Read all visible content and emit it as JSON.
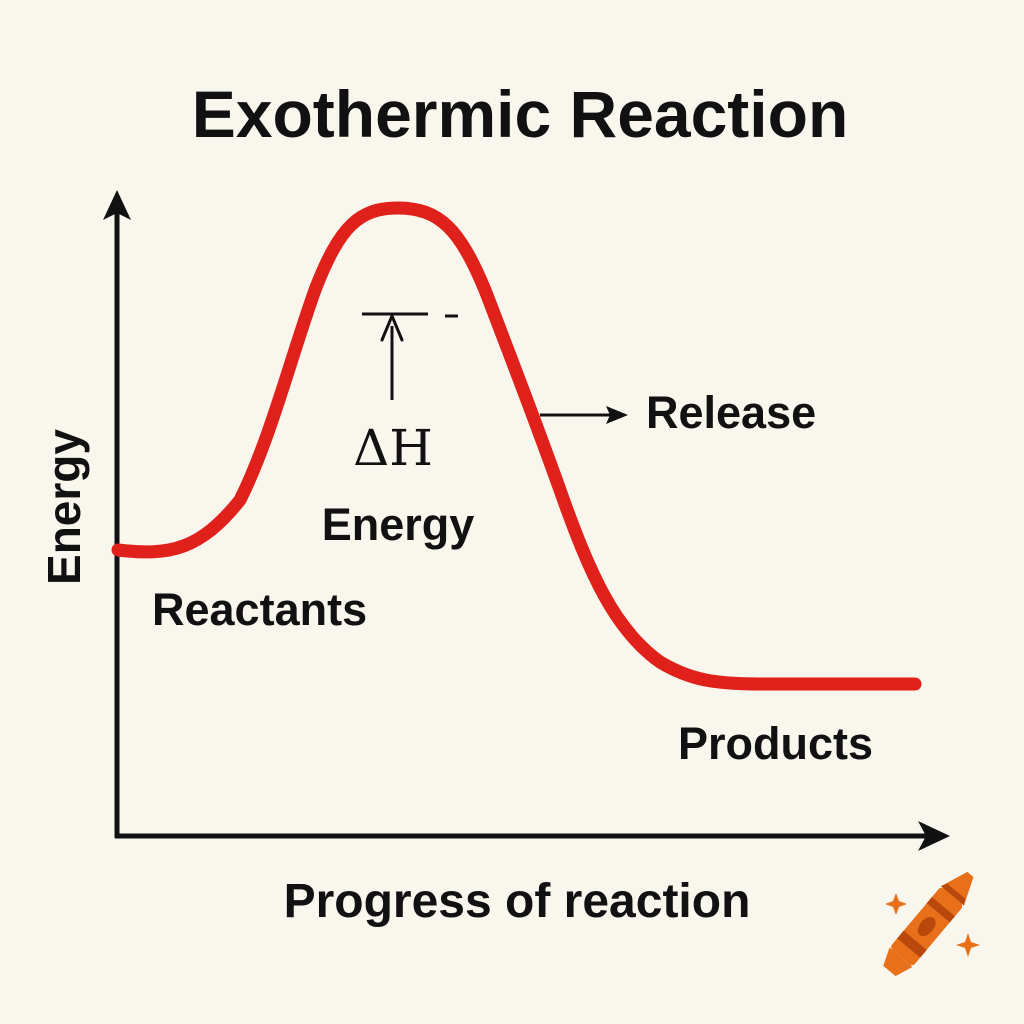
{
  "title": "Exothermic Reaction",
  "axes": {
    "y_label": "Energy",
    "x_label": "Progress of reaction"
  },
  "labels": {
    "reactants": "Reactants",
    "products": "Products",
    "delta_h": "ΔH",
    "energy": "Energy",
    "release": "Release"
  },
  "colors": {
    "background": "#f9f6ee",
    "curve": "#e0201b",
    "ink": "#111111",
    "crayon": "#e8701a",
    "crayon_dark": "#b8480c",
    "sparkle": "#e8701a"
  },
  "icons": {
    "crayon": "crayon-icon",
    "sparkles": "sparkle-icon"
  }
}
